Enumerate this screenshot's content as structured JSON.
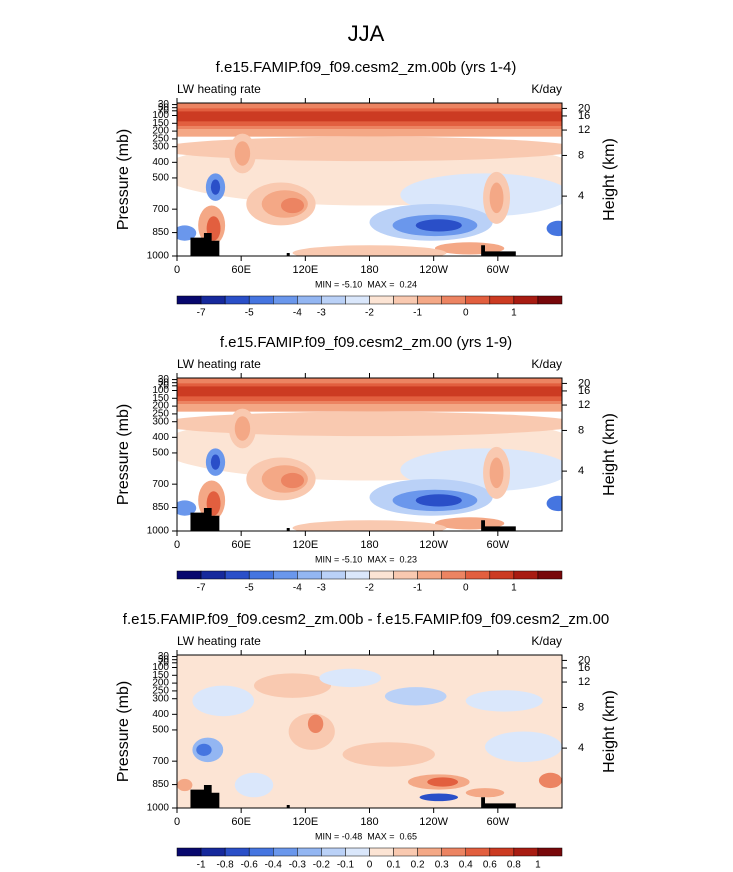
{
  "title": "JJA",
  "panels": [
    {
      "title": "f.e15.FAMIP.f09_f09.cesm2_zm.00b (yrs 1-4)",
      "variable": "LW heating rate",
      "units": "K/day",
      "ylabel": "Pressure (mb)",
      "y2label": "Height (km)",
      "stats": "MIN = -5.10  MAX =  0.24",
      "colorbar_labels": [
        "-7",
        null,
        "-5",
        null,
        "-4",
        "-3",
        null,
        "-2",
        null,
        "-1",
        null,
        "0",
        null,
        "1",
        null
      ]
    },
    {
      "title": "f.e15.FAMIP.f09_f09.cesm2_zm.00 (yrs 1-9)",
      "variable": "LW heating rate",
      "units": "K/day",
      "ylabel": "Pressure (mb)",
      "y2label": "Height (km)",
      "stats": "MIN = -5.10  MAX =  0.23",
      "colorbar_labels": [
        "-7",
        null,
        "-5",
        null,
        "-4",
        "-3",
        null,
        "-2",
        null,
        "-1",
        null,
        "0",
        null,
        "1",
        null
      ]
    },
    {
      "title": "f.e15.FAMIP.f09_f09.cesm2_zm.00b - f.e15.FAMIP.f09_f09.cesm2_zm.00",
      "variable": "LW heating rate",
      "units": "K/day",
      "ylabel": "Pressure (mb)",
      "y2label": "Height (km)",
      "stats": "MIN = -0.48  MAX =  0.65",
      "colorbar_labels": [
        "-1",
        "-0.8",
        "-0.6",
        "-0.4",
        "-0.3",
        "-0.2",
        "-0.1",
        "0",
        "0.1",
        "0.2",
        "0.3",
        "0.4",
        "0.6",
        "0.8",
        "1"
      ]
    }
  ],
  "xlim": [
    0,
    360
  ],
  "xticks": [
    0,
    {
      "value": 60,
      "label": "60E"
    },
    {
      "value": 120,
      "label": "120E"
    },
    180,
    {
      "value": 240,
      "label": "120W"
    },
    {
      "value": 300,
      "label": "60W"
    }
  ],
  "ylim": [
    1000,
    20
  ],
  "yticks": [
    1000,
    850,
    700,
    500,
    400,
    300,
    250,
    200,
    150,
    100,
    70,
    50,
    30
  ],
  "y2ticks": [
    20,
    16,
    12,
    8,
    4
  ],
  "colors": [
    "#08086e",
    "#16299c",
    "#2a4fc8",
    "#4575e0",
    "#6a97ec",
    "#93b6f2",
    "#bad1f7",
    "#dae7fb",
    "#fce4d4",
    "#f9c9b0",
    "#f4a886",
    "#ec8462",
    "#e25f3f",
    "#cc3b22",
    "#a81c12",
    "#78080a"
  ]
}
